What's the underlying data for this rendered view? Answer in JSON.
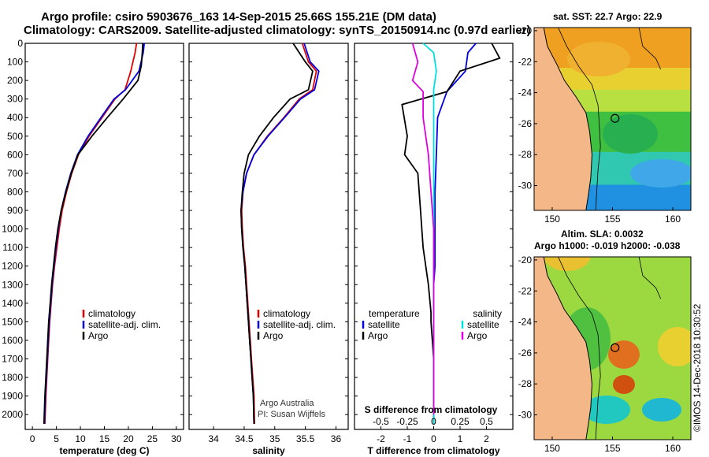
{
  "header": {
    "line1": "Argo profile: csiro 5903676_163 14-Sep-2015 25.66S 155.21E (DM data)",
    "line2": "Climatology: CARS2009. Satellite-adjusted climatology: synTS_20150914.nc (0.97d earlier)"
  },
  "credits": {
    "line1": "Argo Australia",
    "line2": "PI: Susan Wijffels"
  },
  "stamp": "©IMOS 14-Dec-2018 10:30:52",
  "colors": {
    "climatology": "#e00000",
    "satellite": "#0000e0",
    "argo": "#000000",
    "sal_satellite": "#00e0e0",
    "sal_argo": "#e000e0"
  },
  "chart_data": [
    {
      "type": "line",
      "xlabel": "temperature (deg C)",
      "ylabel": "",
      "xlim": [
        -1.5,
        31.5
      ],
      "ylim": [
        2080,
        0
      ],
      "xticks": [
        0,
        5,
        10,
        15,
        20,
        25,
        30
      ],
      "yticks": [
        0,
        100,
        200,
        300,
        400,
        500,
        600,
        700,
        800,
        900,
        1000,
        1100,
        1200,
        1300,
        1400,
        1500,
        1600,
        1700,
        1800,
        1900,
        2000
      ],
      "legend": [
        "climatology",
        "satellite-adj. clim.",
        "Argo"
      ],
      "series": [
        {
          "name": "climatology",
          "x": [
            21.7,
            21.4,
            20.5,
            19.3,
            17.2,
            14.5,
            11.8,
            9.6,
            8.2,
            7.1,
            6.2,
            5.6,
            5.1,
            4.6,
            4.2,
            3.9,
            3.6,
            3.4,
            3.2,
            3.0,
            2.8,
            2.6
          ],
          "y": [
            0,
            50,
            150,
            250,
            300,
            400,
            500,
            600,
            700,
            800,
            900,
            1000,
            1100,
            1200,
            1300,
            1400,
            1500,
            1600,
            1700,
            1800,
            1900,
            2050
          ]
        },
        {
          "name": "satellite-adj. clim.",
          "x": [
            23.3,
            23.1,
            22.2,
            19.4,
            17.0,
            14.3,
            11.6,
            9.4,
            8.0,
            6.9,
            6.0,
            5.4,
            4.9,
            4.5,
            4.1,
            3.8,
            3.5,
            3.3,
            3.1,
            2.9,
            2.7,
            2.5
          ],
          "y": [
            0,
            50,
            150,
            250,
            300,
            400,
            500,
            600,
            700,
            800,
            900,
            1000,
            1100,
            1200,
            1300,
            1400,
            1500,
            1600,
            1700,
            1800,
            1900,
            2050
          ]
        },
        {
          "name": "Argo",
          "x": [
            23.0,
            22.9,
            22.7,
            22.0,
            18.9,
            15.6,
            12.4,
            9.5,
            8.1,
            7.0,
            6.0,
            5.3,
            4.8,
            4.4,
            4.0,
            3.7,
            3.4,
            3.2,
            3.0,
            2.8,
            2.6,
            2.4
          ],
          "y": [
            0,
            50,
            120,
            200,
            300,
            400,
            500,
            600,
            700,
            800,
            900,
            1000,
            1100,
            1200,
            1300,
            1400,
            1500,
            1600,
            1700,
            1800,
            1900,
            2050
          ]
        }
      ]
    },
    {
      "type": "line",
      "xlabel": "salinity",
      "xlim": [
        33.6,
        36.2
      ],
      "ylim": [
        2080,
        0
      ],
      "xticks": [
        34,
        34.5,
        35,
        35.5,
        36
      ],
      "legend": [
        "climatology",
        "satellite-adj. clim.",
        "Argo"
      ],
      "series": [
        {
          "name": "climatology",
          "x": [
            35.45,
            35.55,
            35.68,
            35.62,
            35.4,
            35.15,
            34.88,
            34.66,
            34.54,
            34.48,
            34.46,
            34.47,
            34.49,
            34.52,
            34.54,
            34.56,
            34.58,
            34.6,
            34.62,
            34.64,
            34.66,
            34.67
          ],
          "y": [
            0,
            100,
            150,
            250,
            300,
            400,
            500,
            600,
            700,
            800,
            900,
            1000,
            1100,
            1200,
            1300,
            1400,
            1500,
            1600,
            1700,
            1800,
            1900,
            2050
          ]
        },
        {
          "name": "satellite-adj. clim.",
          "x": [
            35.48,
            35.58,
            35.72,
            35.65,
            35.42,
            35.16,
            34.89,
            34.66,
            34.54,
            34.48,
            34.45,
            34.46,
            34.48,
            34.51,
            34.53,
            34.55,
            34.57,
            34.59,
            34.61,
            34.63,
            34.65,
            34.66
          ],
          "y": [
            0,
            100,
            150,
            250,
            300,
            400,
            500,
            600,
            700,
            800,
            900,
            1000,
            1100,
            1200,
            1300,
            1400,
            1500,
            1600,
            1700,
            1800,
            1900,
            2050
          ]
        },
        {
          "name": "Argo",
          "x": [
            35.3,
            35.5,
            35.62,
            35.55,
            35.25,
            34.98,
            34.75,
            34.57,
            34.5,
            34.47,
            34.45,
            34.46,
            34.48,
            34.51,
            34.53,
            34.55,
            34.57,
            34.59,
            34.61,
            34.63,
            34.65,
            34.66
          ],
          "y": [
            0,
            100,
            150,
            250,
            300,
            400,
            500,
            600,
            700,
            800,
            900,
            1000,
            1100,
            1200,
            1300,
            1400,
            1500,
            1600,
            1700,
            1800,
            1900,
            2050
          ]
        }
      ]
    },
    {
      "type": "line",
      "xlabel": "T difference from climatology",
      "xlabel2": "S difference from climatology",
      "xlim": [
        -3.0,
        3.0
      ],
      "ylim": [
        2080,
        0
      ],
      "xticks": [
        -2,
        -1,
        0,
        1,
        2
      ],
      "xticks2": [
        "-0.5",
        "-0.25",
        "0",
        "0.25",
        "0.5"
      ],
      "xticks2_pos": [
        -2,
        -1,
        0,
        1,
        2
      ],
      "legend_temperature": {
        "title": "temperature",
        "items": [
          "satellite",
          "Argo"
        ]
      },
      "legend_salinity": {
        "title": "salinity",
        "items": [
          "satellite",
          "Argo"
        ]
      },
      "series": [
        {
          "name": "temperature satellite",
          "x": [
            1.6,
            1.3,
            1.2,
            0.5,
            0.15,
            0.1,
            0.05,
            0.05,
            0.05,
            0.0,
            0.0,
            0.0,
            0.0,
            0.0,
            0.0,
            0.0,
            0.0,
            0.0,
            0.0
          ],
          "y": [
            0,
            50,
            150,
            260,
            400,
            600,
            800,
            1000,
            1200,
            1300,
            1400,
            1500,
            1600,
            1700,
            1800,
            1900,
            2000,
            2040,
            2050
          ]
        },
        {
          "name": "temperature Argo",
          "x": [
            2.2,
            2.5,
            1.0,
            0.5,
            -1.2,
            -1.0,
            -1.1,
            -0.6,
            -0.5,
            -0.4,
            -0.2,
            -0.1,
            -0.1,
            -0.05,
            0.0,
            0.0,
            0.0,
            0.0
          ],
          "y": [
            0,
            80,
            150,
            260,
            330,
            500,
            600,
            700,
            900,
            1100,
            1300,
            1450,
            1500,
            1600,
            1700,
            1800,
            1900,
            2050
          ]
        },
        {
          "name": "salinity satellite",
          "x": [
            -0.4,
            0.0,
            0.1,
            0.0,
            0.0,
            0.0,
            0.0,
            0.0,
            0.0,
            0.0,
            0.0,
            0.0,
            0.0,
            0.0
          ],
          "y": [
            0,
            50,
            150,
            250,
            400,
            600,
            800,
            1000,
            1200,
            1400,
            1600,
            1800,
            1950,
            2050
          ]
        },
        {
          "name": "salinity Argo",
          "x": [
            -0.8,
            -0.6,
            -0.8,
            -0.4,
            -0.4,
            -0.2,
            -0.1,
            0.0,
            0.0,
            0.0,
            0.0,
            0.0,
            0.0
          ],
          "y": [
            0,
            100,
            200,
            260,
            400,
            600,
            800,
            1000,
            1200,
            1400,
            1600,
            1800,
            2000
          ]
        }
      ]
    },
    {
      "type": "heatmap",
      "title": "sat. SST: 22.7  Argo: 22.9",
      "xticks": [
        150,
        155,
        160
      ],
      "yticks": [
        -20,
        -22,
        -24,
        -26,
        -28,
        -30
      ],
      "xlim": [
        148.5,
        161.5
      ],
      "ylim": [
        -31.6,
        -19.8
      ],
      "marker": {
        "lon": 155.21,
        "lat": -25.66
      }
    },
    {
      "type": "heatmap",
      "title": "Altim. SLA: 0.0032",
      "subtitle": "Argo h1000: -0.019 h2000: -0.038",
      "xticks": [
        150,
        155,
        160
      ],
      "yticks": [
        -20,
        -22,
        -24,
        -26,
        -28,
        -30
      ],
      "xlim": [
        148.5,
        161.5
      ],
      "ylim": [
        -31.6,
        -19.8
      ],
      "marker": {
        "lon": 155.21,
        "lat": -25.66
      }
    }
  ]
}
